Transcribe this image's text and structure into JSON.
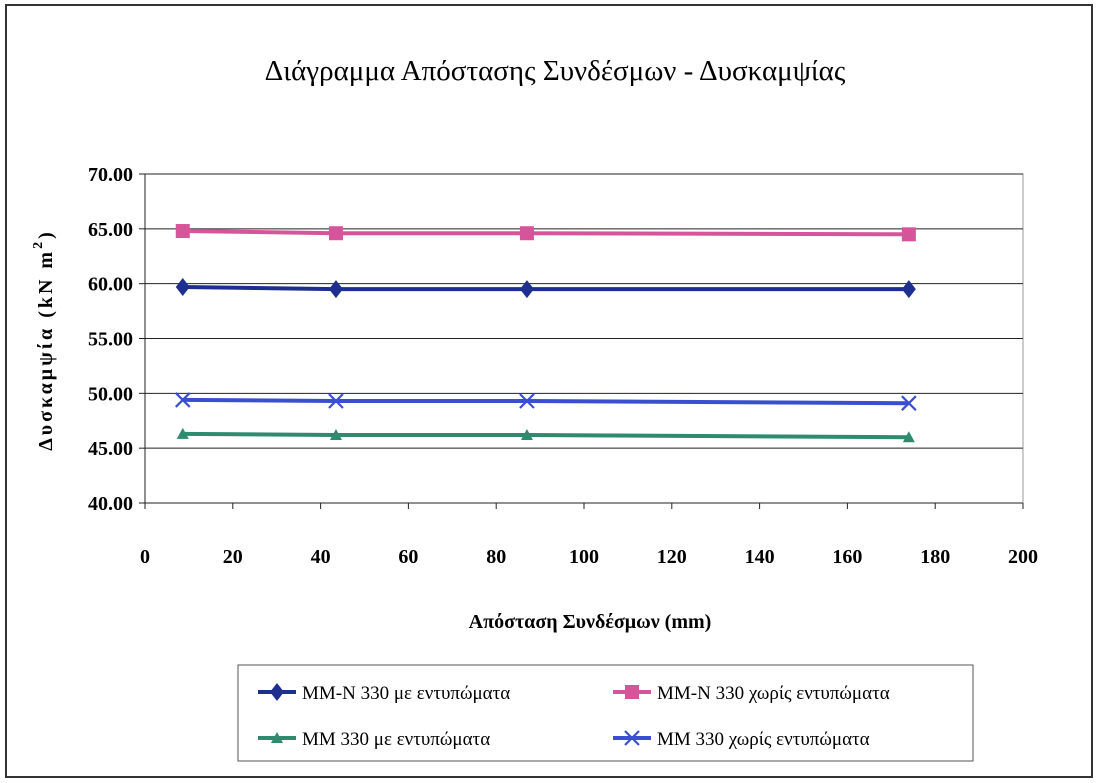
{
  "chart_data": {
    "type": "line",
    "title": "Διάγραμμα Απόστασης Συνδέσμων - Δυσκαμψίας",
    "xlabel": "Απόσταση Συνδέσμων (mm)",
    "ylabel": "Δυσκαμψία (kN m",
    "ylabel_sup": "2",
    "ylabel_close": ")",
    "xlim": [
      0,
      200
    ],
    "ylim": [
      40,
      70
    ],
    "x_ticks": [
      "0",
      "20",
      "40",
      "60",
      "80",
      "100",
      "120",
      "140",
      "160",
      "180",
      "200"
    ],
    "y_ticks": [
      "40.00",
      "45.00",
      "50.00",
      "55.00",
      "60.00",
      "65.00",
      "70.00"
    ],
    "grid": "horizontal",
    "legend_position": "bottom",
    "x": [
      8.6,
      43.5,
      87,
      174
    ],
    "series": [
      {
        "name": "MM-N 330 με εντυπώματα",
        "values": [
          59.7,
          59.5,
          59.5,
          59.5
        ],
        "color": "#1f2f8f",
        "marker": "diamond"
      },
      {
        "name": "MM-N 330 χωρίς εντυπώματα",
        "values": [
          64.8,
          64.6,
          64.6,
          64.5
        ],
        "color": "#d6559a",
        "marker": "square"
      },
      {
        "name": "MM 330 με εντυπώματα",
        "values": [
          46.3,
          46.2,
          46.2,
          46.0
        ],
        "color": "#2e8b6e",
        "marker": "triangle"
      },
      {
        "name": "MM 330 χωρίς εντυπώματα",
        "values": [
          49.4,
          49.3,
          49.3,
          49.1
        ],
        "color": "#3a4fd0",
        "marker": "x"
      }
    ]
  }
}
